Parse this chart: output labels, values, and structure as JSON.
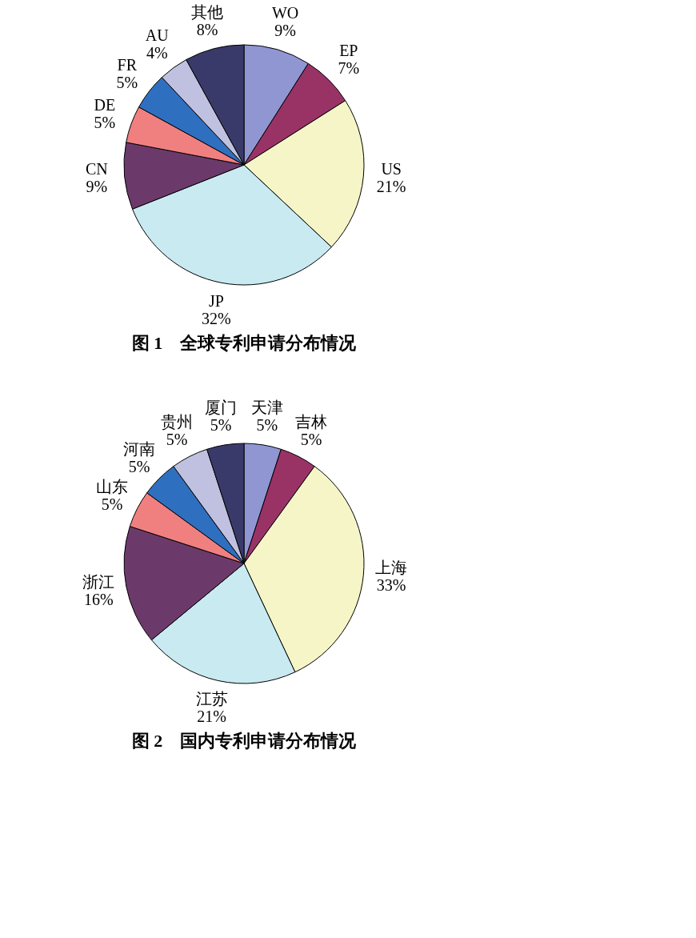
{
  "chart_data": [
    {
      "type": "pie",
      "title": "图 1　全球专利申请分布情况",
      "categories": [
        "WO",
        "EP",
        "US",
        "JP",
        "CN",
        "DE",
        "FR",
        "AU",
        "其他"
      ],
      "values": [
        9,
        7,
        21,
        32,
        9,
        5,
        5,
        4,
        8
      ],
      "value_labels": [
        "9%",
        "7%",
        "21%",
        "32%",
        "9%",
        "5%",
        "5%",
        "4%",
        "8%"
      ],
      "colors": [
        "#8f96d2",
        "#993366",
        "#f5f5c8",
        "#c8eaf0",
        "#6b3a6b",
        "#f08080",
        "#2f6fbf",
        "#c0c0e0",
        "#3a3a6a"
      ],
      "legend": false
    },
    {
      "type": "pie",
      "title": "图 2　国内专利申请分布情况",
      "categories": [
        "天津",
        "吉林",
        "上海",
        "江苏",
        "浙江",
        "山东",
        "河南",
        "贵州",
        "厦门"
      ],
      "values": [
        5,
        5,
        33,
        21,
        16,
        5,
        5,
        5,
        5
      ],
      "value_labels": [
        "5%",
        "5%",
        "33%",
        "21%",
        "16%",
        "5%",
        "5%",
        "5%",
        "5%"
      ],
      "colors": [
        "#8f96d2",
        "#993366",
        "#f5f5c8",
        "#c8eaf0",
        "#6b3a6b",
        "#f08080",
        "#2f6fbf",
        "#c0c0e0",
        "#3a3a6a"
      ],
      "legend": false
    }
  ]
}
